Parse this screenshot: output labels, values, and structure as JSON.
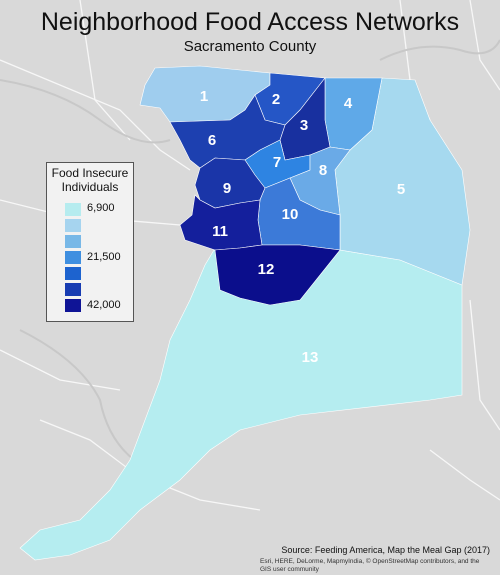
{
  "map": {
    "title": "Neighborhood Food Access Networks",
    "subtitle": "Sacramento County",
    "source": "Source: Feeding America, Map the Meal Gap (2017)",
    "credits_line1": "Esri, HERE, DeLorme, MapmyIndia, © OpenStreetMap contributors, and the",
    "credits_line2": "GIS user community"
  },
  "legend": {
    "title_line1": "Food Insecure",
    "title_line2": "Individuals",
    "labels": [
      "6,900",
      "21,500",
      "42,000"
    ],
    "colors": [
      "#b6ecef",
      "#a6d4ef",
      "#78b8e7",
      "#3f8fe0",
      "#1d63cf",
      "#173cb2",
      "#0f1496"
    ]
  },
  "regions": [
    {
      "id": "1",
      "label": "1",
      "color": "#9fcdee"
    },
    {
      "id": "2",
      "label": "2",
      "color": "#2556c6"
    },
    {
      "id": "3",
      "label": "3",
      "color": "#18309f"
    },
    {
      "id": "4",
      "label": "4",
      "color": "#5fa9e8"
    },
    {
      "id": "5",
      "label": "5",
      "color": "#a6d9ef"
    },
    {
      "id": "6",
      "label": "6",
      "color": "#1d40b0"
    },
    {
      "id": "7",
      "label": "7",
      "color": "#2e84e2"
    },
    {
      "id": "8",
      "label": "8",
      "color": "#6aaae7"
    },
    {
      "id": "9",
      "label": "9",
      "color": "#1a35a8"
    },
    {
      "id": "10",
      "label": "10",
      "color": "#3c7ad8"
    },
    {
      "id": "11",
      "label": "11",
      "color": "#141f9c"
    },
    {
      "id": "12",
      "label": "12",
      "color": "#0b0e8c"
    },
    {
      "id": "13",
      "label": "13",
      "color": "#b5edf0"
    }
  ]
}
